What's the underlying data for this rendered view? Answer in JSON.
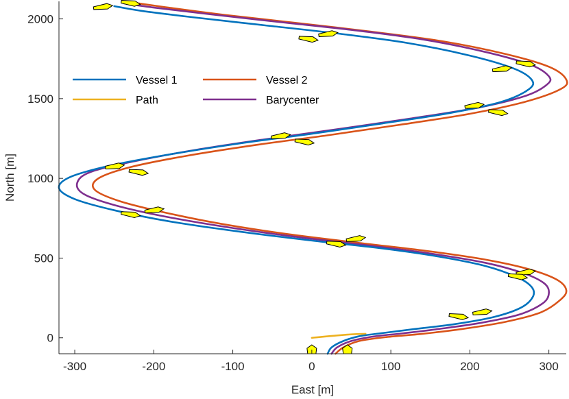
{
  "chart_data": {
    "type": "line",
    "title": "",
    "xlabel": "East [m]",
    "ylabel": "North [m]",
    "xlim": [
      -320,
      322
    ],
    "ylim": [
      -100,
      2110
    ],
    "xticks": [
      -300,
      -200,
      -100,
      0,
      100,
      200,
      300
    ],
    "yticks": [
      0,
      500,
      1000,
      1500,
      2000
    ],
    "grid": false,
    "legend": {
      "placement": "upper-left",
      "columns": 2,
      "entries": [
        "Vessel 1",
        "Vessel 2",
        "Path",
        "Barycenter"
      ]
    },
    "series": [
      {
        "name": "Vessel 1",
        "color": "#0072BD",
        "points": [
          [
            20,
            -100
          ],
          [
            25,
            -60
          ],
          [
            40,
            -20
          ],
          [
            60,
            10
          ],
          [
            90,
            30
          ],
          [
            130,
            55
          ],
          [
            180,
            85
          ],
          [
            230,
            130
          ],
          [
            265,
            190
          ],
          [
            280,
            260
          ],
          [
            278,
            320
          ],
          [
            260,
            380
          ],
          [
            220,
            450
          ],
          [
            160,
            510
          ],
          [
            90,
            560
          ],
          [
            0,
            610
          ],
          [
            -90,
            665
          ],
          [
            -180,
            730
          ],
          [
            -250,
            800
          ],
          [
            -300,
            870
          ],
          [
            -320,
            940
          ],
          [
            -305,
            1010
          ],
          [
            -255,
            1080
          ],
          [
            -180,
            1150
          ],
          [
            -90,
            1220
          ],
          [
            0,
            1280
          ],
          [
            90,
            1345
          ],
          [
            175,
            1410
          ],
          [
            240,
            1480
          ],
          [
            275,
            1560
          ],
          [
            278,
            1620
          ],
          [
            255,
            1690
          ],
          [
            200,
            1770
          ],
          [
            120,
            1850
          ],
          [
            30,
            1910
          ],
          [
            -60,
            1960
          ],
          [
            -150,
            2010
          ],
          [
            -215,
            2050
          ],
          [
            -250,
            2080
          ]
        ]
      },
      {
        "name": "Vessel 2",
        "color": "#D95319",
        "points": [
          [
            30,
            -100
          ],
          [
            40,
            -60
          ],
          [
            60,
            -20
          ],
          [
            95,
            5
          ],
          [
            140,
            25
          ],
          [
            190,
            55
          ],
          [
            245,
            100
          ],
          [
            290,
            160
          ],
          [
            315,
            240
          ],
          [
            322,
            300
          ],
          [
            310,
            365
          ],
          [
            275,
            430
          ],
          [
            220,
            490
          ],
          [
            145,
            545
          ],
          [
            60,
            595
          ],
          [
            -30,
            650
          ],
          [
            -115,
            715
          ],
          [
            -190,
            790
          ],
          [
            -245,
            860
          ],
          [
            -275,
            930
          ],
          [
            -270,
            1000
          ],
          [
            -230,
            1070
          ],
          [
            -160,
            1140
          ],
          [
            -70,
            1210
          ],
          [
            20,
            1270
          ],
          [
            110,
            1335
          ],
          [
            200,
            1405
          ],
          [
            270,
            1480
          ],
          [
            315,
            1560
          ],
          [
            322,
            1620
          ],
          [
            300,
            1700
          ],
          [
            245,
            1780
          ],
          [
            165,
            1860
          ],
          [
            75,
            1920
          ],
          [
            -20,
            1975
          ],
          [
            -110,
            2025
          ],
          [
            -180,
            2070
          ],
          [
            -230,
            2105
          ]
        ]
      },
      {
        "name": "Path",
        "color": "#EDB120",
        "points": [
          [
            0,
            0
          ],
          [
            45,
            20
          ],
          [
            68,
            25
          ]
        ]
      },
      {
        "name": "Barycenter",
        "color": "#7E2F8E",
        "points": [
          [
            25,
            -100
          ],
          [
            32,
            -60
          ],
          [
            50,
            -20
          ],
          [
            78,
            8
          ],
          [
            115,
            28
          ],
          [
            160,
            55
          ],
          [
            212,
            92
          ],
          [
            262,
            145
          ],
          [
            292,
            215
          ],
          [
            300,
            280
          ],
          [
            294,
            342
          ],
          [
            268,
            405
          ],
          [
            220,
            470
          ],
          [
            152,
            527
          ],
          [
            75,
            577
          ],
          [
            -15,
            630
          ],
          [
            -102,
            690
          ],
          [
            -185,
            760
          ],
          [
            -248,
            830
          ],
          [
            -288,
            900
          ],
          [
            -297,
            970
          ],
          [
            -280,
            1040
          ],
          [
            -222,
            1110
          ],
          [
            -145,
            1180
          ],
          [
            -55,
            1248
          ],
          [
            35,
            1310
          ],
          [
            125,
            1375
          ],
          [
            212,
            1445
          ],
          [
            272,
            1520
          ],
          [
            298,
            1590
          ],
          [
            300,
            1640
          ],
          [
            278,
            1710
          ],
          [
            222,
            1790
          ],
          [
            142,
            1870
          ],
          [
            52,
            1930
          ],
          [
            -40,
            1980
          ],
          [
            -130,
            2030
          ],
          [
            -198,
            2070
          ],
          [
            -238,
            2098
          ]
        ]
      }
    ],
    "markers": {
      "description": "vessel position glyphs",
      "points": [
        [
          -265,
          2075
        ],
        [
          -230,
          2100
        ],
        [
          20,
          1905
        ],
        [
          -5,
          1875
        ],
        [
          240,
          1685
        ],
        [
          270,
          1720
        ],
        [
          205,
          1455
        ],
        [
          235,
          1415
        ],
        [
          -40,
          1265
        ],
        [
          -10,
          1230
        ],
        [
          -250,
          1075
        ],
        [
          -220,
          1040
        ],
        [
          -200,
          800
        ],
        [
          -230,
          775
        ],
        [
          55,
          620
        ],
        [
          30,
          590
        ],
        [
          270,
          410
        ],
        [
          260,
          385
        ],
        [
          215,
          160
        ],
        [
          185,
          135
        ],
        [
          0,
          -100
        ],
        [
          45,
          -100
        ]
      ]
    }
  }
}
